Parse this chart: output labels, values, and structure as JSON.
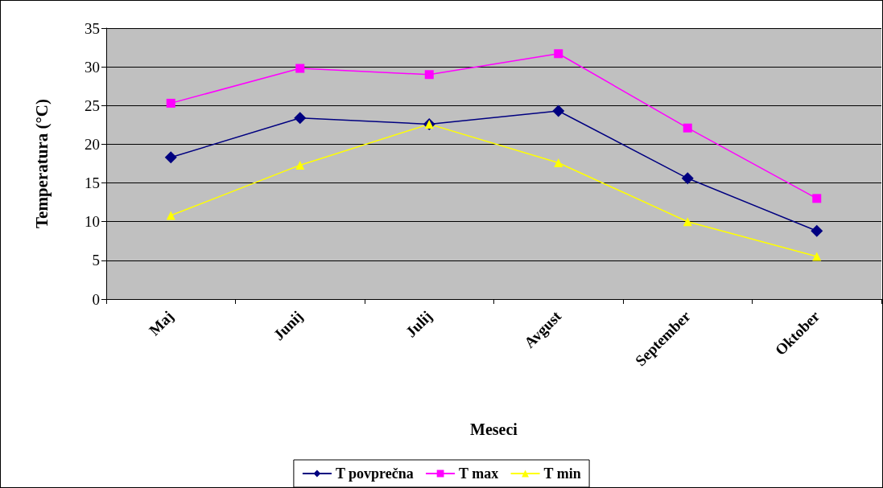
{
  "chart_data": {
    "type": "line",
    "xlabel": "Meseci",
    "ylabel": "Temperatura (°C)",
    "categories": [
      "Maj",
      "Junij",
      "Julij",
      "Avgust",
      "September",
      "Oktober"
    ],
    "series": [
      {
        "name": "T povprečna",
        "color": "#000080",
        "marker": "diamond",
        "values": [
          18.3,
          23.4,
          22.6,
          24.3,
          15.6,
          8.8
        ]
      },
      {
        "name": "T max",
        "color": "#ff00ff",
        "marker": "square",
        "values": [
          25.3,
          29.8,
          29.0,
          31.7,
          22.1,
          13.0
        ]
      },
      {
        "name": "T min",
        "color": "#ffff00",
        "marker": "triangle",
        "values": [
          10.8,
          17.3,
          22.6,
          17.6,
          10.0,
          5.5
        ]
      }
    ],
    "ylim": [
      0,
      35
    ],
    "yticks": [
      0,
      5,
      10,
      15,
      20,
      25,
      30,
      35
    ],
    "grid": "y",
    "legend": "bottom",
    "line_style": "solid"
  }
}
